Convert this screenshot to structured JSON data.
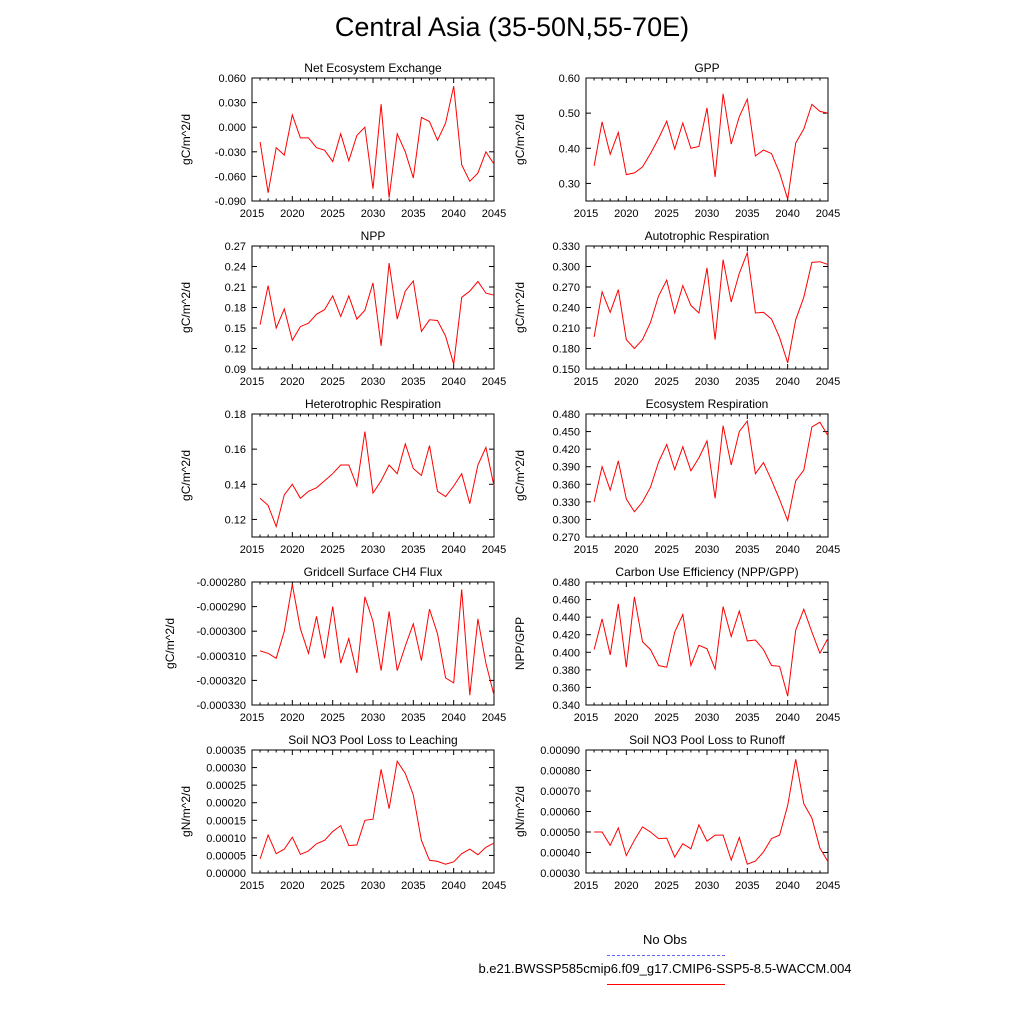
{
  "title": "Central Asia (35-50N,55-70E)",
  "legend": [
    {
      "label": "No Obs",
      "color": "#6060ff",
      "style": "dashed"
    },
    {
      "label": "b.e21.BWSSP585cmip6.f09_g17.CMIP6-SSP5-8.5-WACCM.004",
      "color": "#ff0000",
      "style": "solid"
    }
  ],
  "chart_data": [
    {
      "type": "line",
      "title": "Net Ecosystem Exchange",
      "ylabel": "gC/m^2/d",
      "xlim": [
        2015,
        2045
      ],
      "ylim": [
        -0.09,
        0.06
      ],
      "xticks": [
        2015,
        2020,
        2025,
        2030,
        2035,
        2040,
        2045
      ],
      "yticks": [
        -0.09,
        -0.06,
        -0.03,
        0.0,
        0.03,
        0.06
      ],
      "ytick_labels": [
        "-0.090",
        "-0.060",
        "-0.030",
        "0.000",
        "0.030",
        "0.060"
      ],
      "color": "#ff0000",
      "x": [
        2016,
        2017,
        2018,
        2019,
        2020,
        2021,
        2022,
        2023,
        2024,
        2025,
        2026,
        2027,
        2028,
        2029,
        2030,
        2031,
        2032,
        2033,
        2034,
        2035,
        2036,
        2037,
        2038,
        2039,
        2040,
        2041,
        2042,
        2043,
        2044,
        2045
      ],
      "y": [
        -0.018,
        -0.08,
        -0.025,
        -0.034,
        0.015,
        -0.013,
        -0.013,
        -0.025,
        -0.028,
        -0.042,
        -0.008,
        -0.041,
        -0.01,
        0.0,
        -0.075,
        0.028,
        -0.086,
        -0.008,
        -0.03,
        -0.062,
        0.012,
        0.007,
        -0.016,
        0.005,
        0.05,
        -0.046,
        -0.066,
        -0.056,
        -0.03,
        -0.045
      ]
    },
    {
      "type": "line",
      "title": "GPP",
      "ylabel": "gC/m^2/d",
      "xlim": [
        2015,
        2045
      ],
      "ylim": [
        0.25,
        0.6
      ],
      "xticks": [
        2015,
        2020,
        2025,
        2030,
        2035,
        2040,
        2045
      ],
      "yticks": [
        0.3,
        0.4,
        0.5,
        0.6
      ],
      "ytick_labels": [
        "0.30",
        "0.40",
        "0.50",
        "0.60"
      ],
      "color": "#ff0000",
      "x": [
        2016,
        2017,
        2018,
        2019,
        2020,
        2021,
        2022,
        2023,
        2024,
        2025,
        2026,
        2027,
        2028,
        2029,
        2030,
        2031,
        2032,
        2033,
        2034,
        2035,
        2036,
        2037,
        2038,
        2039,
        2040,
        2041,
        2042,
        2043,
        2044,
        2045
      ],
      "y": [
        0.35,
        0.475,
        0.383,
        0.445,
        0.325,
        0.33,
        0.347,
        0.385,
        0.428,
        0.477,
        0.398,
        0.472,
        0.4,
        0.405,
        0.515,
        0.318,
        0.555,
        0.412,
        0.49,
        0.54,
        0.378,
        0.395,
        0.385,
        0.33,
        0.255,
        0.415,
        0.455,
        0.525,
        0.505,
        0.5
      ]
    },
    {
      "type": "line",
      "title": "NPP",
      "ylabel": "gC/m^2/d",
      "xlim": [
        2015,
        2045
      ],
      "ylim": [
        0.09,
        0.27
      ],
      "xticks": [
        2015,
        2020,
        2025,
        2030,
        2035,
        2040,
        2045
      ],
      "yticks": [
        0.09,
        0.12,
        0.15,
        0.18,
        0.21,
        0.24,
        0.27
      ],
      "ytick_labels": [
        "0.09",
        "0.12",
        "0.15",
        "0.18",
        "0.21",
        "0.24",
        "0.27"
      ],
      "color": "#ff0000",
      "x": [
        2016,
        2017,
        2018,
        2019,
        2020,
        2021,
        2022,
        2023,
        2024,
        2025,
        2026,
        2027,
        2028,
        2029,
        2030,
        2031,
        2032,
        2033,
        2034,
        2035,
        2036,
        2037,
        2038,
        2039,
        2040,
        2041,
        2042,
        2043,
        2044,
        2045
      ],
      "y": [
        0.155,
        0.212,
        0.15,
        0.178,
        0.132,
        0.152,
        0.157,
        0.17,
        0.177,
        0.197,
        0.167,
        0.197,
        0.163,
        0.176,
        0.216,
        0.124,
        0.245,
        0.163,
        0.204,
        0.219,
        0.145,
        0.162,
        0.161,
        0.138,
        0.097,
        0.195,
        0.204,
        0.218,
        0.201,
        0.198
      ]
    },
    {
      "type": "line",
      "title": "Autotrophic Respiration",
      "ylabel": "gC/m^2/d",
      "xlim": [
        2015,
        2045
      ],
      "ylim": [
        0.15,
        0.33
      ],
      "xticks": [
        2015,
        2020,
        2025,
        2030,
        2035,
        2040,
        2045
      ],
      "yticks": [
        0.15,
        0.18,
        0.21,
        0.24,
        0.27,
        0.3,
        0.33
      ],
      "ytick_labels": [
        "0.150",
        "0.180",
        "0.210",
        "0.240",
        "0.270",
        "0.300",
        "0.330"
      ],
      "color": "#ff0000",
      "x": [
        2016,
        2017,
        2018,
        2019,
        2020,
        2021,
        2022,
        2023,
        2024,
        2025,
        2026,
        2027,
        2028,
        2029,
        2030,
        2031,
        2032,
        2033,
        2034,
        2035,
        2036,
        2037,
        2038,
        2039,
        2040,
        2041,
        2042,
        2043,
        2044,
        2045
      ],
      "y": [
        0.197,
        0.263,
        0.233,
        0.266,
        0.193,
        0.18,
        0.193,
        0.218,
        0.257,
        0.28,
        0.232,
        0.272,
        0.243,
        0.232,
        0.298,
        0.193,
        0.31,
        0.248,
        0.29,
        0.32,
        0.232,
        0.233,
        0.223,
        0.196,
        0.159,
        0.222,
        0.255,
        0.306,
        0.307,
        0.303
      ]
    },
    {
      "type": "line",
      "title": "Heterotrophic Respiration",
      "ylabel": "gC/m^2/d",
      "xlim": [
        2015,
        2045
      ],
      "ylim": [
        0.11,
        0.18
      ],
      "xticks": [
        2015,
        2020,
        2025,
        2030,
        2035,
        2040,
        2045
      ],
      "yticks": [
        0.12,
        0.14,
        0.16,
        0.18
      ],
      "ytick_labels": [
        "0.12",
        "0.14",
        "0.16",
        "0.18"
      ],
      "color": "#ff0000",
      "x": [
        2016,
        2017,
        2018,
        2019,
        2020,
        2021,
        2022,
        2023,
        2024,
        2025,
        2026,
        2027,
        2028,
        2029,
        2030,
        2031,
        2032,
        2033,
        2034,
        2035,
        2036,
        2037,
        2038,
        2039,
        2040,
        2041,
        2042,
        2043,
        2044,
        2045
      ],
      "y": [
        0.132,
        0.128,
        0.116,
        0.134,
        0.14,
        0.132,
        0.136,
        0.138,
        0.142,
        0.146,
        0.151,
        0.151,
        0.139,
        0.17,
        0.135,
        0.142,
        0.151,
        0.146,
        0.163,
        0.149,
        0.145,
        0.162,
        0.136,
        0.133,
        0.139,
        0.146,
        0.129,
        0.151,
        0.161,
        0.139
      ]
    },
    {
      "type": "line",
      "title": "Ecosystem Respiration",
      "ylabel": "gC/m^2/d",
      "xlim": [
        2015,
        2045
      ],
      "ylim": [
        0.27,
        0.48
      ],
      "xticks": [
        2015,
        2020,
        2025,
        2030,
        2035,
        2040,
        2045
      ],
      "yticks": [
        0.27,
        0.3,
        0.33,
        0.36,
        0.39,
        0.42,
        0.45,
        0.48
      ],
      "ytick_labels": [
        "0.270",
        "0.300",
        "0.330",
        "0.360",
        "0.390",
        "0.420",
        "0.450",
        "0.480"
      ],
      "color": "#ff0000",
      "x": [
        2016,
        2017,
        2018,
        2019,
        2020,
        2021,
        2022,
        2023,
        2024,
        2025,
        2026,
        2027,
        2028,
        2029,
        2030,
        2031,
        2032,
        2033,
        2034,
        2035,
        2036,
        2037,
        2038,
        2039,
        2040,
        2041,
        2042,
        2043,
        2044,
        2045
      ],
      "y": [
        0.33,
        0.39,
        0.35,
        0.4,
        0.335,
        0.313,
        0.33,
        0.355,
        0.398,
        0.428,
        0.385,
        0.424,
        0.383,
        0.405,
        0.434,
        0.336,
        0.46,
        0.393,
        0.45,
        0.468,
        0.378,
        0.397,
        0.367,
        0.334,
        0.298,
        0.366,
        0.384,
        0.458,
        0.466,
        0.443
      ]
    },
    {
      "type": "line",
      "title": "Gridcell Surface CH4 Flux",
      "ylabel": "gC/m^2/d",
      "xlim": [
        2015,
        2045
      ],
      "ylim": [
        -0.00033,
        -0.00028
      ],
      "xticks": [
        2015,
        2020,
        2025,
        2030,
        2035,
        2040,
        2045
      ],
      "yticks": [
        -0.00033,
        -0.00032,
        -0.00031,
        -0.0003,
        -0.00029,
        -0.00028
      ],
      "ytick_labels": [
        "-0.000330",
        "-0.000320",
        "-0.000310",
        "-0.000300",
        "-0.000290",
        "-0.000280"
      ],
      "color": "#ff0000",
      "x": [
        2016,
        2017,
        2018,
        2019,
        2020,
        2021,
        2022,
        2023,
        2024,
        2025,
        2026,
        2027,
        2028,
        2029,
        2030,
        2031,
        2032,
        2033,
        2034,
        2035,
        2036,
        2037,
        2038,
        2039,
        2040,
        2041,
        2042,
        2043,
        2044,
        2045
      ],
      "y": [
        -0.000308,
        -0.000309,
        -0.000311,
        -0.0003,
        -0.000281,
        -0.000299,
        -0.000309,
        -0.000294,
        -0.000311,
        -0.00029,
        -0.000313,
        -0.000303,
        -0.000317,
        -0.000286,
        -0.000296,
        -0.000316,
        -0.000292,
        -0.000316,
        -0.000306,
        -0.000297,
        -0.000312,
        -0.000291,
        -0.000301,
        -0.000319,
        -0.000321,
        -0.000283,
        -0.000326,
        -0.000295,
        -0.000313,
        -0.000326
      ]
    },
    {
      "type": "line",
      "title": "Carbon Use Efficiency (NPP/GPP)",
      "ylabel": "NPP/GPP",
      "xlim": [
        2015,
        2045
      ],
      "ylim": [
        0.34,
        0.48
      ],
      "xticks": [
        2015,
        2020,
        2025,
        2030,
        2035,
        2040,
        2045
      ],
      "yticks": [
        0.34,
        0.36,
        0.38,
        0.4,
        0.42,
        0.44,
        0.46,
        0.48
      ],
      "ytick_labels": [
        "0.340",
        "0.360",
        "0.380",
        "0.400",
        "0.420",
        "0.440",
        "0.460",
        "0.480"
      ],
      "color": "#ff0000",
      "x": [
        2016,
        2017,
        2018,
        2019,
        2020,
        2021,
        2022,
        2023,
        2024,
        2025,
        2026,
        2027,
        2028,
        2029,
        2030,
        2031,
        2032,
        2033,
        2034,
        2035,
        2036,
        2037,
        2038,
        2039,
        2040,
        2041,
        2042,
        2043,
        2044,
        2045
      ],
      "y": [
        0.403,
        0.438,
        0.397,
        0.455,
        0.383,
        0.463,
        0.412,
        0.403,
        0.385,
        0.383,
        0.423,
        0.443,
        0.385,
        0.408,
        0.404,
        0.381,
        0.452,
        0.418,
        0.447,
        0.413,
        0.414,
        0.403,
        0.385,
        0.384,
        0.35,
        0.425,
        0.449,
        0.423,
        0.399,
        0.416
      ]
    },
    {
      "type": "line",
      "title": "Soil NO3 Pool Loss to Leaching",
      "ylabel": "gN/m^2/d",
      "xlim": [
        2015,
        2045
      ],
      "ylim": [
        0.0,
        0.00035
      ],
      "xticks": [
        2015,
        2020,
        2025,
        2030,
        2035,
        2040,
        2045
      ],
      "yticks": [
        0.0,
        5e-05,
        0.0001,
        0.00015,
        0.0002,
        0.00025,
        0.0003,
        0.00035
      ],
      "ytick_labels": [
        "0.00000",
        "0.00005",
        "0.00010",
        "0.00015",
        "0.00020",
        "0.00025",
        "0.00030",
        "0.00035"
      ],
      "color": "#ff0000",
      "x": [
        2016,
        2017,
        2018,
        2019,
        2020,
        2021,
        2022,
        2023,
        2024,
        2025,
        2026,
        2027,
        2028,
        2029,
        2030,
        2031,
        2032,
        2033,
        2034,
        2035,
        2036,
        2037,
        2038,
        2039,
        2040,
        2041,
        2042,
        2043,
        2044,
        2045
      ],
      "y": [
        4e-05,
        0.000108,
        5.5e-05,
        6.8e-05,
        0.000102,
        5.3e-05,
        6.3e-05,
        8.3e-05,
        9.3e-05,
        0.000118,
        0.000135,
        7.8e-05,
        8e-05,
        0.00015,
        0.000153,
        0.000295,
        0.000183,
        0.000318,
        0.000283,
        0.000222,
        9.3e-05,
        3.6e-05,
        3.3e-05,
        2.5e-05,
        3.2e-05,
        5.5e-05,
        6.8e-05,
        5.2e-05,
        7.3e-05,
        8.5e-05
      ]
    },
    {
      "type": "line",
      "title": "Soil NO3 Pool Loss to Runoff",
      "ylabel": "gN/m^2/d",
      "xlim": [
        2015,
        2045
      ],
      "ylim": [
        0.0003,
        0.0009
      ],
      "xticks": [
        2015,
        2020,
        2025,
        2030,
        2035,
        2040,
        2045
      ],
      "yticks": [
        0.0003,
        0.0004,
        0.0005,
        0.0006,
        0.0007,
        0.0008,
        0.0009
      ],
      "ytick_labels": [
        "0.00030",
        "0.00040",
        "0.00050",
        "0.00060",
        "0.00070",
        "0.00080",
        "0.00090"
      ],
      "color": "#ff0000",
      "x": [
        2016,
        2017,
        2018,
        2019,
        2020,
        2021,
        2022,
        2023,
        2024,
        2025,
        2026,
        2027,
        2028,
        2029,
        2030,
        2031,
        2032,
        2033,
        2034,
        2035,
        2036,
        2037,
        2038,
        2039,
        2040,
        2041,
        2042,
        2043,
        2044,
        2045
      ],
      "y": [
        0.0005,
        0.0005,
        0.000435,
        0.00052,
        0.000385,
        0.00046,
        0.000525,
        0.0005,
        0.000468,
        0.00047,
        0.000378,
        0.000443,
        0.000418,
        0.000535,
        0.000455,
        0.000485,
        0.000485,
        0.000363,
        0.000473,
        0.000343,
        0.000358,
        0.000403,
        0.000468,
        0.000485,
        0.00063,
        0.000855,
        0.000638,
        0.000568,
        0.000422,
        0.000355
      ]
    }
  ]
}
